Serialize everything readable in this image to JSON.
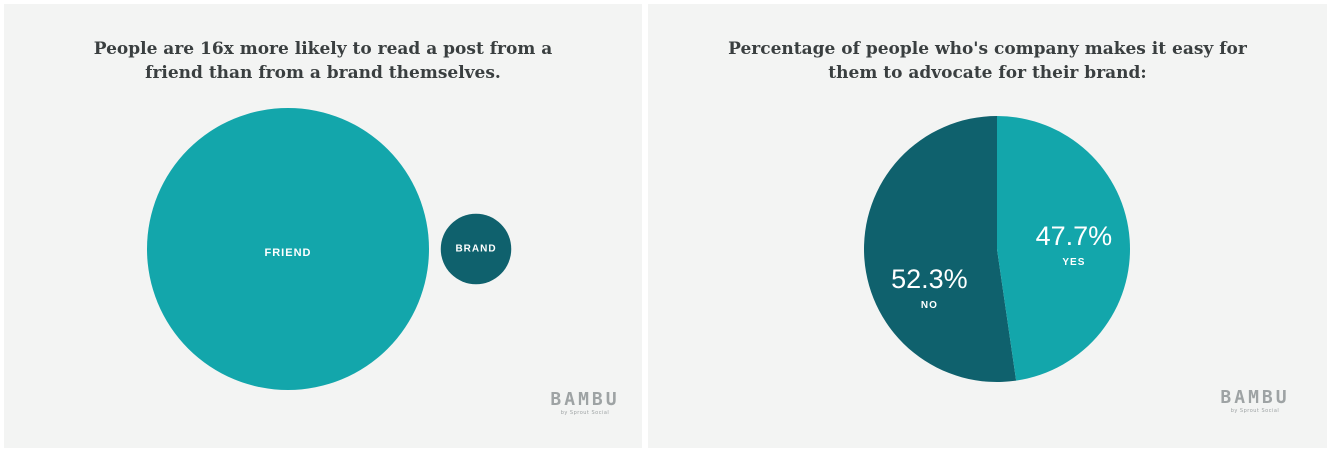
{
  "colors": {
    "teal": "#13a6ab",
    "dark_teal": "#0f616d",
    "background": "#f3f4f3"
  },
  "chart_data": [
    {
      "type": "bubble",
      "title_lines": [
        "People are 16x more likely to read a post from a",
        "friend than from a brand themselves."
      ],
      "circles": [
        {
          "label": "FRIEND",
          "value": 16
        },
        {
          "label": "BRAND",
          "value": 1
        }
      ]
    },
    {
      "type": "pie",
      "title_lines": [
        "Percentage of people who's company makes it easy for",
        "them to advocate for their brand:"
      ],
      "slices": [
        {
          "label": "YES",
          "value": 47.7,
          "display": "47.7%"
        },
        {
          "label": "NO",
          "value": 52.3,
          "display": "52.3%"
        }
      ]
    }
  ],
  "logo": {
    "wordmark": "BAMBU",
    "sub": "by Sprout Social"
  }
}
